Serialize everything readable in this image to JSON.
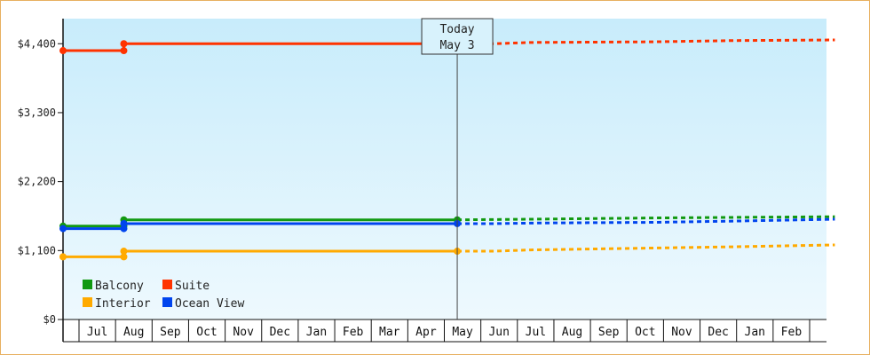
{
  "chart_data": {
    "type": "line",
    "title": "",
    "xlabel": "",
    "ylabel": "",
    "ylim": [
      0,
      4800
    ],
    "y_ticks": [
      0,
      1100,
      2200,
      3300,
      4400
    ],
    "y_tick_labels": [
      "$0",
      "$1,100",
      "$2,200",
      "$3,300",
      "$4,400"
    ],
    "months": [
      "",
      "Jul",
      "Aug",
      "Sep",
      "Oct",
      "Nov",
      "Dec",
      "Jan",
      "Feb",
      "Mar",
      "Apr",
      "May",
      "Jun",
      "Jul",
      "Aug",
      "Sep",
      "Oct",
      "Nov",
      "Dec",
      "Jan",
      "Feb"
    ],
    "today_line_1": "Today",
    "today_line_2": "May 3",
    "today_index": 10.7,
    "plot_start_index": 0,
    "plot_end_index": 20.95,
    "grid": false,
    "legend_position": "bottom-left",
    "series": [
      {
        "name": "Suite",
        "color": "#ff3300",
        "history": [
          [
            0,
            4290
          ],
          [
            1.65,
            4290
          ],
          [
            1.65,
            4400
          ],
          [
            10.7,
            4400
          ]
        ],
        "forecast": [
          [
            10.7,
            4400
          ],
          [
            11.7,
            4400
          ],
          [
            12.7,
            4420
          ],
          [
            16,
            4430
          ],
          [
            18.2,
            4450
          ],
          [
            20.95,
            4460
          ]
        ]
      },
      {
        "name": "Balcony",
        "color": "#119911",
        "history": [
          [
            0,
            1490
          ],
          [
            1.65,
            1490
          ],
          [
            1.65,
            1590
          ],
          [
            10.7,
            1590
          ]
        ],
        "forecast": [
          [
            10.7,
            1590
          ],
          [
            12.7,
            1600
          ],
          [
            16,
            1620
          ],
          [
            20.95,
            1640
          ]
        ]
      },
      {
        "name": "Ocean View",
        "color": "#0044ee",
        "history": [
          [
            0,
            1450
          ],
          [
            1.65,
            1450
          ],
          [
            1.65,
            1530
          ],
          [
            10.7,
            1530
          ]
        ],
        "forecast": [
          [
            10.7,
            1530
          ],
          [
            11.7,
            1530
          ],
          [
            13,
            1540
          ],
          [
            16,
            1550
          ],
          [
            18.2,
            1570
          ],
          [
            20.95,
            1600
          ]
        ]
      },
      {
        "name": "Interior",
        "color": "#ffaa00",
        "history": [
          [
            0,
            1000
          ],
          [
            1.65,
            1000
          ],
          [
            1.65,
            1090
          ],
          [
            10.7,
            1090
          ]
        ],
        "forecast": [
          [
            10.7,
            1090
          ],
          [
            11.7,
            1090
          ],
          [
            12.7,
            1110
          ],
          [
            16,
            1140
          ],
          [
            18.2,
            1160
          ],
          [
            20.95,
            1190
          ]
        ]
      }
    ],
    "legend_rows": [
      [
        "Balcony",
        "Suite"
      ],
      [
        "Interior",
        "Ocean View"
      ]
    ]
  }
}
